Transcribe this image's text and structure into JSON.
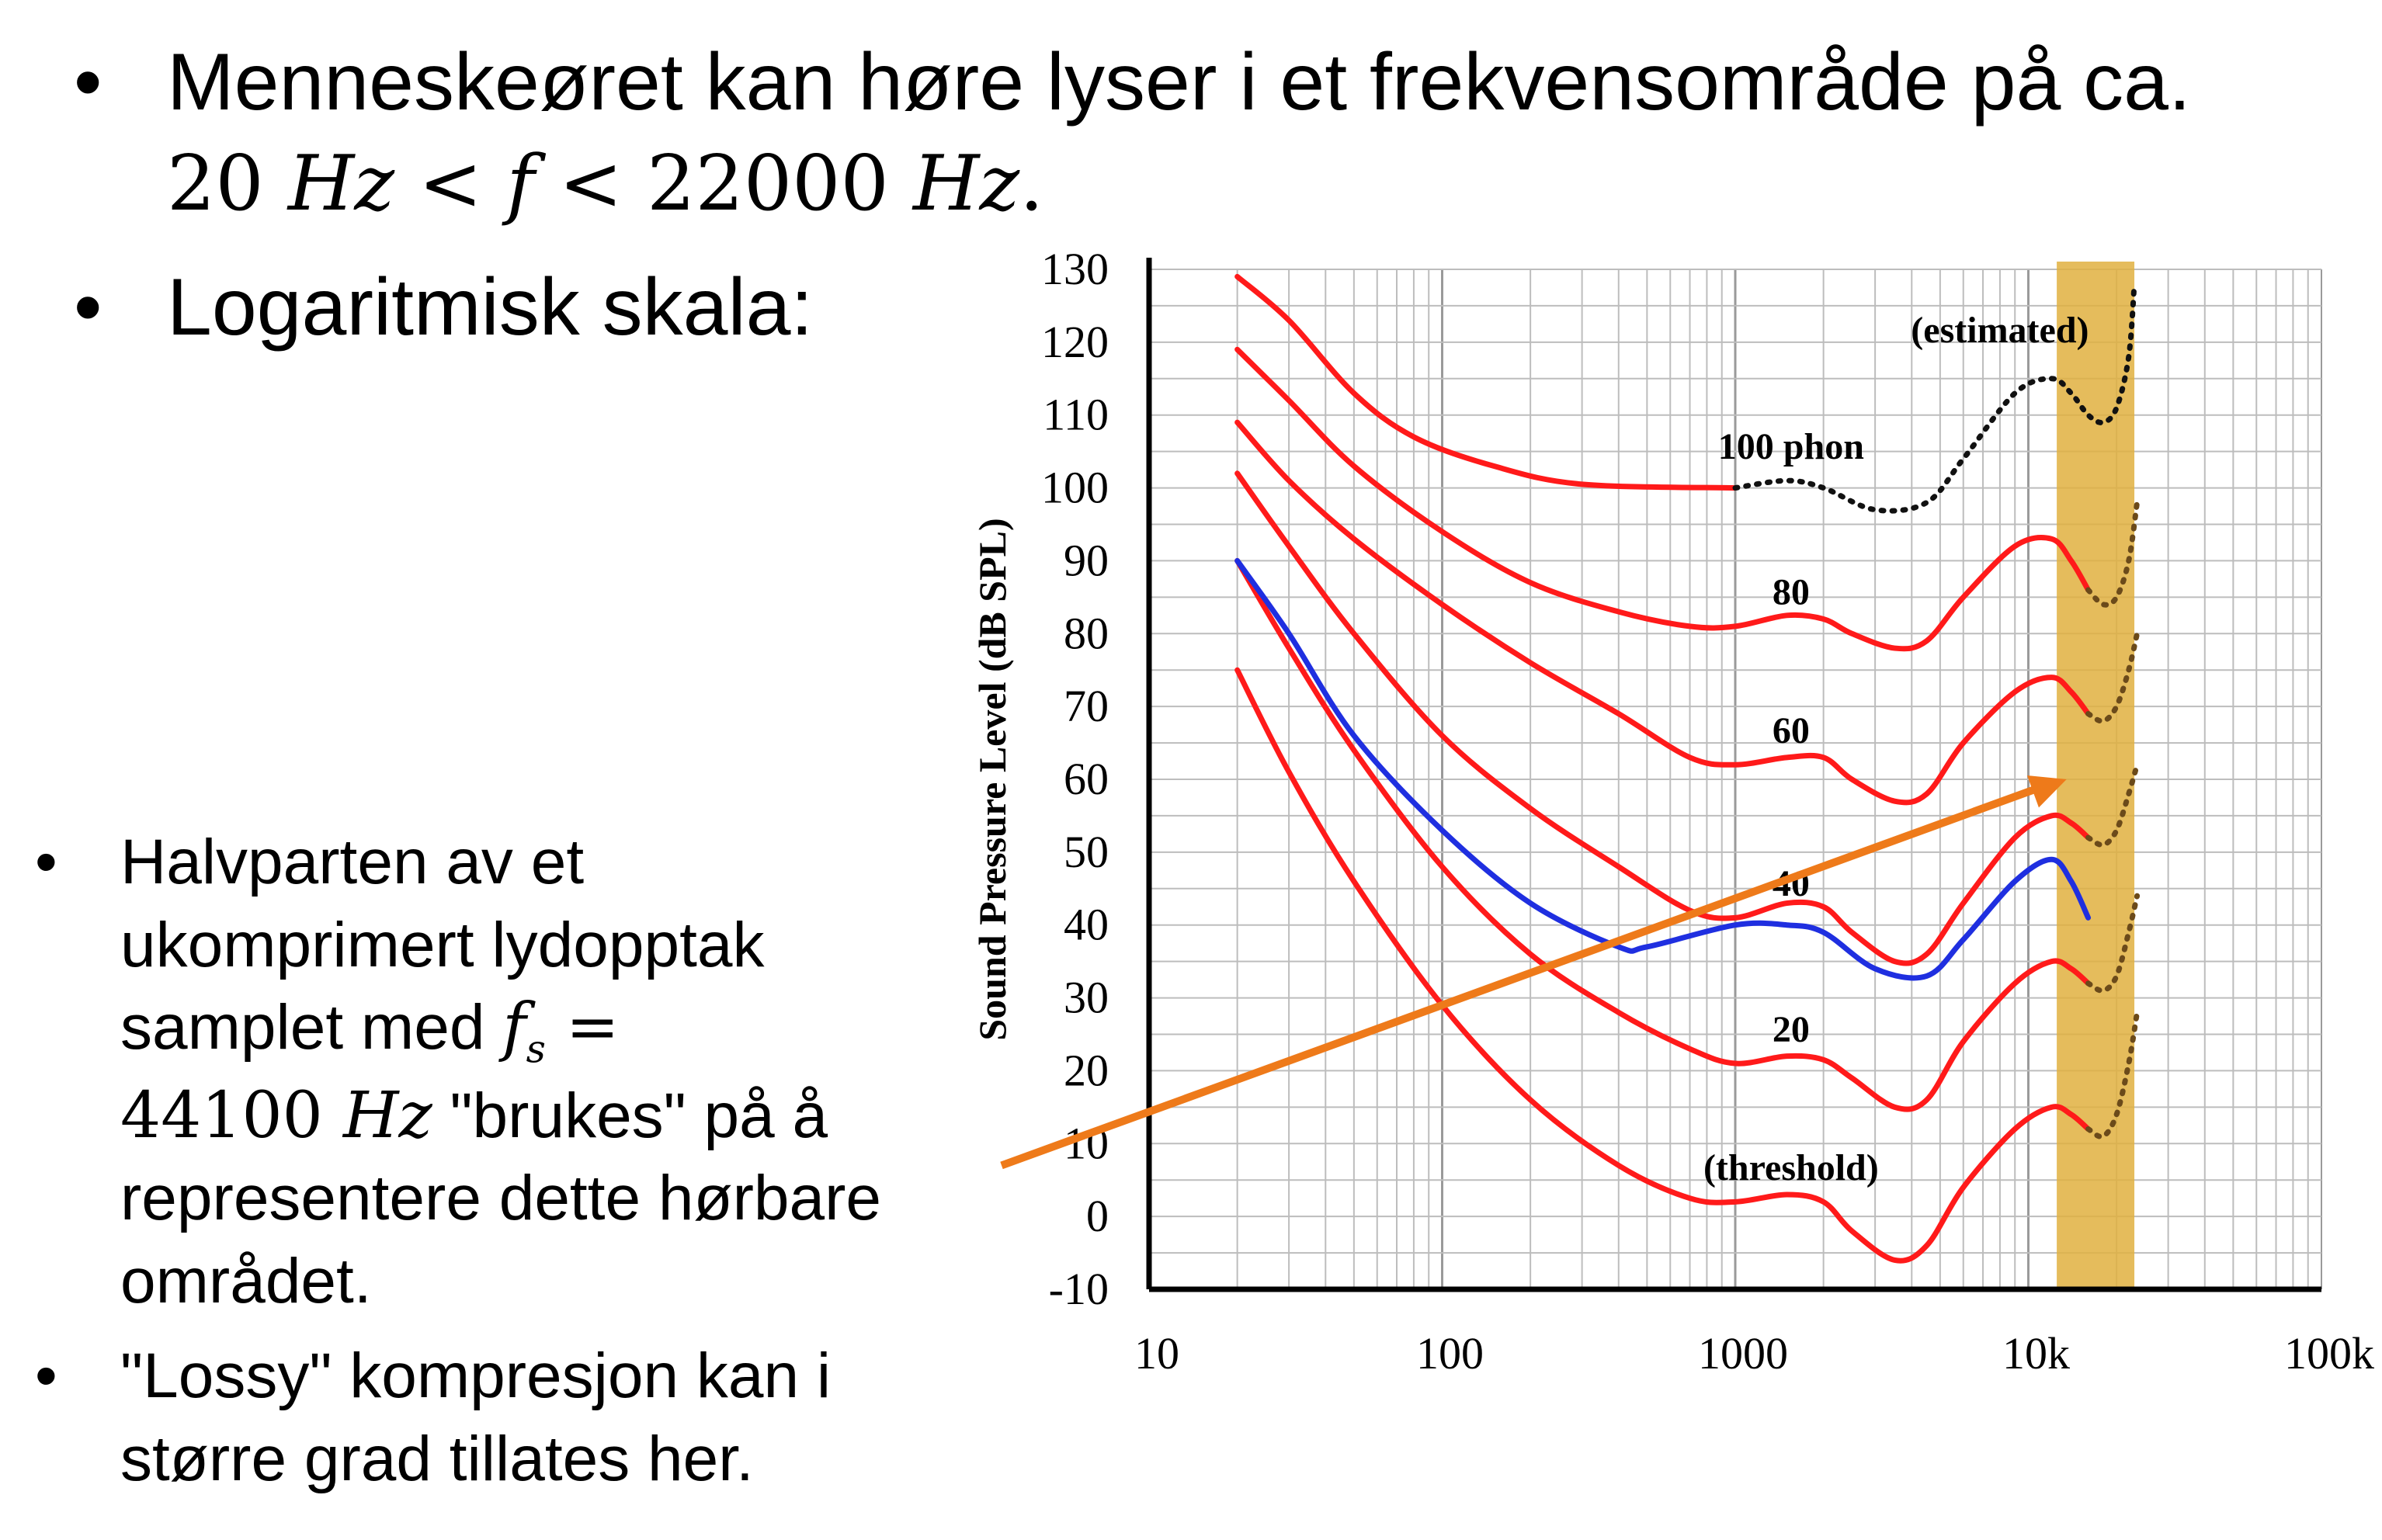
{
  "bullets_top": [
    {
      "text": "Menneskeøret kan høre lyser i et frekvensområde på ca."
    },
    {
      "text": "Logaritmisk skala:"
    }
  ],
  "math_range": {
    "n1": "20",
    "u1": "Hz",
    "lt1": "<",
    "var": "f",
    "lt2": "<",
    "n2": "22000",
    "u2": "Hz",
    "dot": "."
  },
  "bullets_bottom": [
    {
      "lines": [
        "Halvparten av et",
        "ukomprimert lydopptak",
        "samplet med "
      ],
      "fs": "f",
      "fs_sub": "s",
      "eq": " =",
      "val": "44100",
      "unit": "Hz",
      "rest": " \"brukes\" på å",
      "lines2": [
        "representere dette hørbare",
        "området."
      ]
    },
    {
      "lines": [
        "\"Lossy\" kompresjon kan i",
        "større grad tillates her."
      ]
    }
  ],
  "bullet_symbol": "•",
  "chart_data": {
    "type": "line",
    "x_scale": "log",
    "xlim": [
      10,
      100000
    ],
    "ylim": [
      -10,
      130
    ],
    "ylabel": "Sound Pressure Level (dB SPL)",
    "x_ticks": [
      {
        "v": 10,
        "label": "10"
      },
      {
        "v": 100,
        "label": "100"
      },
      {
        "v": 1000,
        "label": "1000"
      },
      {
        "v": 10000,
        "label": "10k"
      },
      {
        "v": 100000,
        "label": "100k"
      }
    ],
    "y_ticks": [
      -10,
      0,
      10,
      20,
      30,
      40,
      50,
      60,
      70,
      80,
      90,
      100,
      110,
      120,
      130
    ],
    "grid": true,
    "colors": {
      "curves": "#ff1a1a",
      "blue": "#1f2fe0",
      "estimated": "#111111",
      "band": "#e0b040",
      "arrow": "#ee7a1a",
      "tail": "#e9742a"
    },
    "series": [
      {
        "name": "100 phon",
        "points": [
          [
            20,
            129
          ],
          [
            30,
            123
          ],
          [
            50,
            113
          ],
          [
            80,
            107
          ],
          [
            150,
            103
          ],
          [
            300,
            100.5
          ],
          [
            1000,
            100
          ]
        ]
      },
      {
        "name": "80",
        "points": [
          [
            20,
            119
          ],
          [
            30,
            112
          ],
          [
            50,
            103
          ],
          [
            100,
            94
          ],
          [
            200,
            87
          ],
          [
            400,
            83
          ],
          [
            700,
            81
          ],
          [
            1000,
            81
          ],
          [
            1500,
            82.5
          ],
          [
            2000,
            82
          ],
          [
            2500,
            80
          ],
          [
            3500,
            78
          ],
          [
            4500,
            79
          ],
          [
            6000,
            85
          ],
          [
            9000,
            92
          ],
          [
            12000,
            93
          ],
          [
            14000,
            90
          ],
          [
            16000,
            86
          ]
        ]
      },
      {
        "name": "60",
        "points": [
          [
            20,
            109
          ],
          [
            30,
            101
          ],
          [
            50,
            93
          ],
          [
            100,
            84
          ],
          [
            200,
            76
          ],
          [
            400,
            69
          ],
          [
            700,
            63
          ],
          [
            1000,
            62
          ],
          [
            1500,
            63
          ],
          [
            2000,
            63
          ],
          [
            2500,
            60
          ],
          [
            3500,
            57
          ],
          [
            4500,
            58
          ],
          [
            6000,
            65
          ],
          [
            9000,
            72
          ],
          [
            12000,
            74
          ],
          [
            14000,
            72
          ],
          [
            16000,
            69
          ]
        ]
      },
      {
        "name": "40",
        "points": [
          [
            20,
            102
          ],
          [
            30,
            92
          ],
          [
            50,
            80
          ],
          [
            100,
            66
          ],
          [
            200,
            56
          ],
          [
            400,
            48
          ],
          [
            700,
            42
          ],
          [
            1000,
            41
          ],
          [
            1500,
            43
          ],
          [
            2000,
            42.5
          ],
          [
            2500,
            39
          ],
          [
            3500,
            35
          ],
          [
            4500,
            36
          ],
          [
            6000,
            43
          ],
          [
            9000,
            52
          ],
          [
            12000,
            55
          ],
          [
            14000,
            54
          ],
          [
            16000,
            52
          ]
        ]
      },
      {
        "name": "20",
        "points": [
          [
            20,
            90
          ],
          [
            30,
            78
          ],
          [
            50,
            64
          ],
          [
            100,
            48
          ],
          [
            200,
            36
          ],
          [
            400,
            28
          ],
          [
            700,
            23
          ],
          [
            1000,
            21
          ],
          [
            1500,
            22
          ],
          [
            2000,
            21.5
          ],
          [
            2500,
            19
          ],
          [
            3500,
            15
          ],
          [
            4500,
            16
          ],
          [
            6000,
            24
          ],
          [
            9000,
            32
          ],
          [
            12000,
            35
          ],
          [
            14000,
            34
          ],
          [
            16000,
            32
          ]
        ]
      },
      {
        "name": "(threshold)",
        "points": [
          [
            20,
            75
          ],
          [
            30,
            61
          ],
          [
            50,
            46
          ],
          [
            100,
            29
          ],
          [
            200,
            16
          ],
          [
            400,
            7
          ],
          [
            700,
            2.5
          ],
          [
            1000,
            2
          ],
          [
            1500,
            3
          ],
          [
            2000,
            2
          ],
          [
            2500,
            -2
          ],
          [
            3500,
            -6
          ],
          [
            4500,
            -4
          ],
          [
            6000,
            4
          ],
          [
            9000,
            12
          ],
          [
            12000,
            15
          ],
          [
            14000,
            14
          ],
          [
            16000,
            12
          ]
        ]
      },
      {
        "name": "blue",
        "points": [
          [
            20,
            90
          ],
          [
            30,
            80
          ],
          [
            50,
            66
          ],
          [
            100,
            53
          ],
          [
            200,
            43
          ],
          [
            400,
            37
          ],
          [
            500,
            37
          ],
          [
            1000,
            40
          ],
          [
            1500,
            40
          ],
          [
            2000,
            39
          ],
          [
            3000,
            34
          ],
          [
            4500,
            33
          ],
          [
            6000,
            38
          ],
          [
            9000,
            46
          ],
          [
            12000,
            49
          ],
          [
            14000,
            46
          ],
          [
            16000,
            41
          ]
        ]
      },
      {
        "name": "(estimated)",
        "points": [
          [
            1000,
            100
          ],
          [
            1500,
            101
          ],
          [
            2000,
            100
          ],
          [
            3000,
            97
          ],
          [
            4500,
            98
          ],
          [
            6000,
            104
          ],
          [
            9000,
            113
          ],
          [
            12000,
            115
          ],
          [
            14000,
            113
          ],
          [
            16000,
            110
          ],
          [
            18000,
            109
          ],
          [
            20000,
            111
          ],
          [
            22000,
            118
          ],
          [
            23000,
            128
          ]
        ]
      }
    ],
    "tails": [
      {
        "points": [
          [
            16000,
            86
          ],
          [
            18000,
            84
          ],
          [
            20000,
            85
          ],
          [
            22000,
            90
          ],
          [
            23500,
            98
          ]
        ]
      },
      {
        "points": [
          [
            16000,
            69
          ],
          [
            18000,
            68
          ],
          [
            20000,
            70
          ],
          [
            22000,
            75
          ],
          [
            23500,
            80
          ]
        ]
      },
      {
        "points": [
          [
            16000,
            52
          ],
          [
            18000,
            51
          ],
          [
            20000,
            53
          ],
          [
            22000,
            58
          ],
          [
            23500,
            62
          ]
        ]
      },
      {
        "points": [
          [
            16000,
            32
          ],
          [
            18000,
            31
          ],
          [
            20000,
            33
          ],
          [
            22000,
            39
          ],
          [
            23500,
            44
          ]
        ]
      },
      {
        "points": [
          [
            16000,
            12
          ],
          [
            18000,
            11
          ],
          [
            20000,
            14
          ],
          [
            22000,
            21
          ],
          [
            23500,
            28
          ]
        ]
      }
    ],
    "band": [
      12500,
      23000
    ],
    "annotations": [
      {
        "text": "(estimated)",
        "x": 8000,
        "y": 120
      },
      {
        "text": "100 phon",
        "x": 1550,
        "y": 104
      },
      {
        "text": "80",
        "x": 1550,
        "y": 84
      },
      {
        "text": "60",
        "x": 1550,
        "y": 65
      },
      {
        "text": "40",
        "x": 1550,
        "y": 44
      },
      {
        "text": "20",
        "x": 1550,
        "y": 24
      },
      {
        "text": "(threshold)",
        "x": 1550,
        "y": 5
      }
    ],
    "arrow": {
      "from": [
        10,
        7
      ],
      "to": [
        13500,
        60
      ]
    }
  }
}
